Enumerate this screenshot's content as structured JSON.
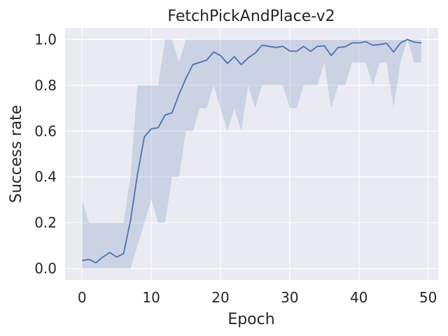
{
  "chart_data": {
    "type": "line",
    "title": "FetchPickAndPlace-v2",
    "xlabel": "Epoch",
    "ylabel": "Success rate",
    "xlim": [
      -2.45,
      51.45
    ],
    "ylim": [
      -0.05,
      1.05
    ],
    "xticks": [
      0,
      10,
      20,
      30,
      40,
      50
    ],
    "yticks": [
      0.0,
      0.2,
      0.4,
      0.6,
      0.8,
      1.0
    ],
    "xtick_labels": [
      "0",
      "10",
      "20",
      "30",
      "40",
      "50"
    ],
    "ytick_labels": [
      "0.0",
      "0.2",
      "0.4",
      "0.6",
      "0.8",
      "1.0"
    ],
    "grid": true,
    "colors": {
      "line": "#4c72b0",
      "band": "#4c72b0",
      "background": "#eaeaf2",
      "grid": "#ffffff"
    },
    "series": [
      {
        "x": [
          0,
          1,
          2,
          3,
          4,
          5,
          6,
          7,
          8,
          9,
          10,
          11,
          12,
          13,
          14,
          15,
          16,
          17,
          18,
          19,
          20,
          21,
          22,
          23,
          24,
          25,
          26,
          27,
          28,
          29,
          30,
          31,
          32,
          33,
          34,
          35,
          36,
          37,
          38,
          39,
          40,
          41,
          42,
          43,
          44,
          45,
          46,
          47,
          48,
          49
        ],
        "mean": [
          0.035,
          0.04,
          0.025,
          0.05,
          0.07,
          0.05,
          0.065,
          0.21,
          0.41,
          0.575,
          0.61,
          0.615,
          0.67,
          0.68,
          0.76,
          0.83,
          0.89,
          0.9,
          0.91,
          0.945,
          0.93,
          0.895,
          0.925,
          0.89,
          0.92,
          0.94,
          0.975,
          0.97,
          0.965,
          0.97,
          0.95,
          0.948,
          0.97,
          0.948,
          0.97,
          0.972,
          0.93,
          0.965,
          0.968,
          0.985,
          0.985,
          0.99,
          0.975,
          0.978,
          0.983,
          0.945,
          0.985,
          1.0,
          0.988,
          0.985
        ],
        "lower": [
          0.0,
          0.0,
          0.0,
          0.0,
          0.0,
          0.0,
          0.0,
          0.0,
          0.1,
          0.2,
          0.3,
          0.2,
          0.2,
          0.4,
          0.4,
          0.6,
          0.6,
          0.7,
          0.7,
          0.8,
          0.7,
          0.6,
          0.7,
          0.6,
          0.8,
          0.7,
          0.8,
          0.8,
          0.8,
          0.8,
          0.7,
          0.7,
          0.8,
          0.8,
          0.8,
          0.9,
          0.7,
          0.8,
          0.8,
          0.9,
          0.9,
          0.9,
          0.8,
          0.9,
          0.9,
          0.7,
          0.9,
          1.0,
          0.9,
          0.9
        ],
        "upper": [
          0.3,
          0.2,
          0.2,
          0.2,
          0.2,
          0.2,
          0.2,
          0.4,
          0.8,
          0.8,
          0.8,
          0.8,
          1.0,
          1.0,
          0.9,
          1.0,
          1.0,
          1.0,
          1.0,
          1.0,
          1.0,
          1.0,
          1.0,
          1.0,
          1.0,
          1.0,
          1.0,
          1.0,
          1.0,
          1.0,
          1.0,
          1.0,
          1.0,
          1.0,
          1.0,
          1.0,
          1.0,
          1.0,
          1.0,
          1.0,
          1.0,
          1.0,
          1.0,
          1.0,
          1.0,
          1.0,
          1.0,
          1.0,
          1.0,
          1.0
        ]
      }
    ]
  }
}
